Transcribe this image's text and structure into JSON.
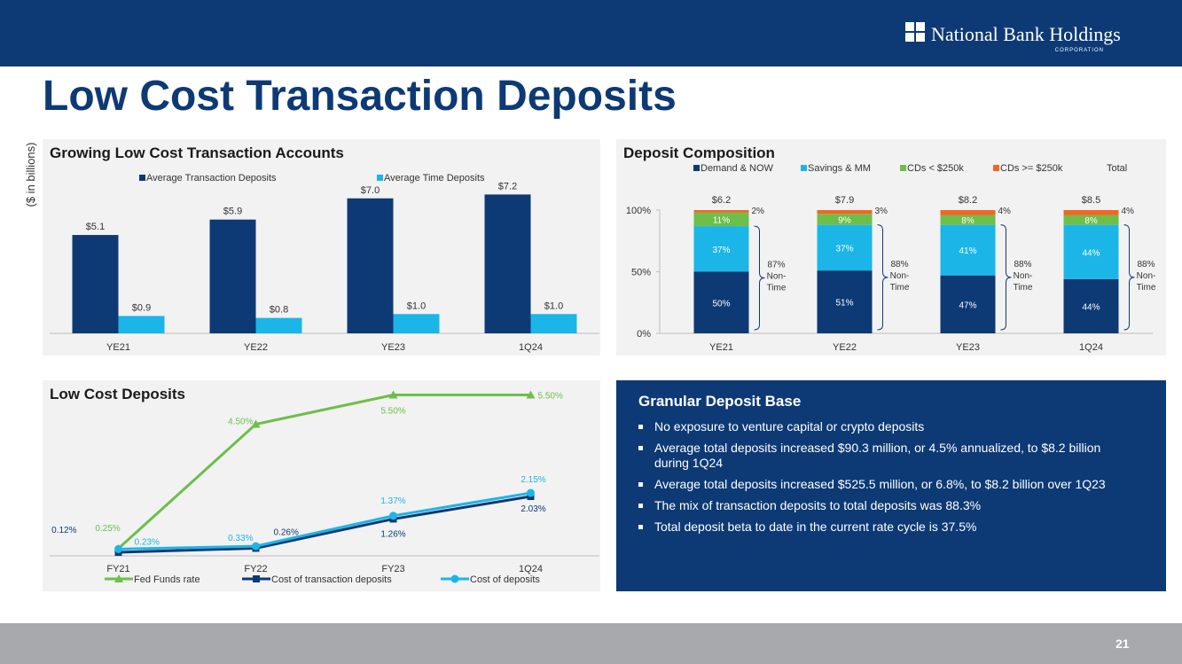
{
  "header": {
    "logo": "National Bank Holdings",
    "logo_sub": "CORPORATION"
  },
  "title": "Low Cost Transaction Deposits",
  "footer": {
    "page": "21"
  },
  "info_box": {
    "title": "Granular Deposit Base",
    "bullets": [
      "No exposure to venture capital or crypto deposits",
      "Average total deposits increased $90.3 million, or 4.5% annualized, to $8.2 billion during 1Q24",
      "Average total deposits increased $525.5 million, or 6.8%, to $8.2 billion over 1Q23",
      "The mix of transaction deposits to total deposits was 88.3%",
      "Total deposit beta to date in the current rate cycle is 37.5%"
    ]
  },
  "chart_data": [
    {
      "type": "bar",
      "title": "Growing Low Cost Transaction Accounts",
      "y_axis_label": "($ in billions)",
      "categories": [
        "YE21",
        "YE22",
        "YE23",
        "1Q24"
      ],
      "ylim": [
        0,
        8
      ],
      "series": [
        {
          "name": "Average Transaction Deposits",
          "color": "#0d3a75",
          "values": [
            5.1,
            5.9,
            7.0,
            7.2
          ],
          "value_labels": [
            "$5.1",
            "$5.9",
            "$7.0",
            "$7.2"
          ]
        },
        {
          "name": "Average Time Deposits",
          "color": "#1cb5e8",
          "values": [
            0.9,
            0.8,
            1.0,
            1.0
          ],
          "value_labels": [
            "$0.9",
            "$0.8",
            "$1.0",
            "$1.0"
          ]
        }
      ]
    },
    {
      "type": "bar",
      "stacked": true,
      "title": "Deposit Composition",
      "categories": [
        "YE21",
        "YE22",
        "YE23",
        "1Q24"
      ],
      "ylim": [
        0,
        100
      ],
      "yticks": [
        {
          "value": 0,
          "label": "0%"
        },
        {
          "value": 50,
          "label": "50%"
        },
        {
          "value": 100,
          "label": "100%"
        }
      ],
      "series": [
        {
          "name": "Demand & NOW",
          "color": "#0d3a75",
          "values": [
            50,
            51,
            47,
            44
          ],
          "value_labels": [
            "50%",
            "51%",
            "47%",
            "44%"
          ]
        },
        {
          "name": "Savings & MM",
          "color": "#1cb5e8",
          "values": [
            37,
            37,
            41,
            44
          ],
          "value_labels": [
            "37%",
            "37%",
            "41%",
            "44%"
          ]
        },
        {
          "name": "CDs < $250k",
          "color": "#6cbf4b",
          "values": [
            11,
            9,
            8,
            8
          ],
          "value_labels": [
            "11%",
            "9%",
            "8%",
            "8%"
          ]
        },
        {
          "name": "CDs >= $250k",
          "color": "#f26522",
          "values": [
            2,
            3,
            4,
            4
          ],
          "value_labels": [
            "2%",
            "3%",
            "4%",
            "4%"
          ]
        }
      ],
      "totals": {
        "name": "Total",
        "labels": [
          "$6.2",
          "$7.9",
          "$8.2",
          "$8.5"
        ]
      },
      "non_time": {
        "labels": [
          "87%",
          "88%",
          "88%",
          "88%"
        ],
        "label_lines": [
          "Non-",
          "Time"
        ]
      }
    },
    {
      "type": "line",
      "title": "Low Cost Deposits",
      "categories": [
        "FY21",
        "FY22",
        "FY23",
        "1Q24"
      ],
      "ylim": [
        0,
        6
      ],
      "series": [
        {
          "name": "Fed Funds rate",
          "color": "#6cbf4b",
          "marker": "triangle",
          "values": [
            0.25,
            4.5,
            5.5,
            5.5
          ],
          "value_labels": [
            "0.25%",
            "4.50%",
            "5.50%",
            "5.50%"
          ]
        },
        {
          "name": "Cost of transaction deposits",
          "color": "#0d3a75",
          "marker": "square",
          "values": [
            0.12,
            0.26,
            1.26,
            2.03
          ],
          "value_labels": [
            "0.12%",
            "0.26%",
            "1.26%",
            "2.03%"
          ]
        },
        {
          "name": "Cost of deposits",
          "color": "#1cb5e8",
          "marker": "circle",
          "values": [
            0.23,
            0.33,
            1.37,
            2.15
          ],
          "value_labels": [
            "0.23%",
            "0.33%",
            "1.37%",
            "2.15%"
          ]
        }
      ]
    }
  ]
}
